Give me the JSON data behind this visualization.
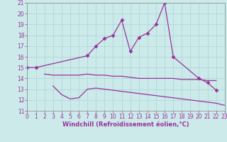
{
  "xlabel": "Windchill (Refroidissement éolien,°C)",
  "bg_color": "#cceaea",
  "grid_color": "#aad4d4",
  "line_color": "#993399",
  "xmin": 0,
  "xmax": 23,
  "ymin": 11,
  "ymax": 21,
  "line1_x": [
    0,
    1,
    7,
    8,
    9,
    10,
    11,
    12,
    13,
    14,
    15,
    16,
    17,
    20,
    21,
    22
  ],
  "line1_y": [
    15.0,
    15.0,
    16.1,
    17.0,
    17.7,
    18.0,
    19.4,
    16.5,
    17.8,
    18.2,
    19.0,
    21.0,
    16.0,
    14.0,
    13.6,
    12.9
  ],
  "line2_x": [
    2,
    3,
    6,
    7,
    8,
    9,
    10,
    11,
    12,
    13,
    14,
    15,
    16,
    17,
    18,
    19,
    20,
    21,
    22
  ],
  "line2_y": [
    14.4,
    14.3,
    14.3,
    14.4,
    14.3,
    14.3,
    14.2,
    14.2,
    14.1,
    14.0,
    14.0,
    14.0,
    14.0,
    14.0,
    13.9,
    13.9,
    13.9,
    13.8,
    13.8
  ],
  "line3_x": [
    3,
    4,
    5,
    6,
    7,
    8,
    9,
    10,
    11,
    12,
    13,
    14,
    15,
    16,
    17,
    18,
    19,
    20,
    21,
    22,
    23
  ],
  "line3_y": [
    13.3,
    12.5,
    12.1,
    12.2,
    13.0,
    13.1,
    13.0,
    12.9,
    12.8,
    12.7,
    12.6,
    12.5,
    12.4,
    12.3,
    12.2,
    12.1,
    12.0,
    11.9,
    11.8,
    11.7,
    11.5
  ],
  "tick_fontsize": 5.5,
  "xlabel_fontsize": 6.0,
  "marker": "D",
  "markersize": 2.5
}
